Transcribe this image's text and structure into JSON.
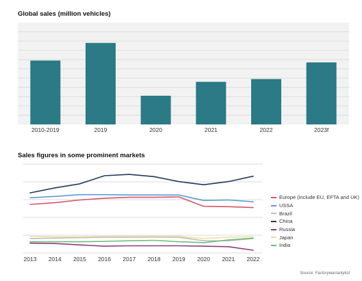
{
  "chart_data": [
    {
      "type": "bar",
      "title": "Global sales (million vehicles)",
      "categories": [
        "2010-2019",
        "2019",
        "2020",
        "2021",
        "2022",
        "2023f"
      ],
      "values": [
        6.9,
        8.8,
        3.1,
        4.6,
        4.9,
        6.7
      ],
      "ylim": [
        0,
        11
      ],
      "grid": true,
      "color": "#2b7a85"
    },
    {
      "type": "line",
      "title": "Sales figures in some prominent markets",
      "x": [
        2013,
        2014,
        2015,
        2016,
        2017,
        2018,
        2019,
        2020,
        2021,
        2022
      ],
      "ylim": [
        0,
        100
      ],
      "grid": true,
      "legend_position": "right",
      "series": [
        {
          "name": "Europe (include EU, EFTA and UK)",
          "color": "#d94f6c",
          "values": [
            54.6,
            56.6,
            59.6,
            61.6,
            62.6,
            62.6,
            63.1,
            52.5,
            52.1,
            51.1
          ]
        },
        {
          "name": "USSA",
          "color": "#5b9bd5",
          "values": [
            62.1,
            63.6,
            65.6,
            65.6,
            65.2,
            65.2,
            65.2,
            59.1,
            59.6,
            57.6
          ]
        },
        {
          "name": "Brazil",
          "color": "#bdbdbd",
          "values": [
            16.2,
            16.7,
            17.2,
            17.7,
            17.7,
            17.7,
            17.7,
            13.7,
            13.7,
            16.2
          ]
        },
        {
          "name": "China",
          "color": "#1f3a5a",
          "values": [
            67.6,
            73.2,
            77.8,
            86.9,
            88.4,
            85.9,
            80.3,
            76.8,
            80.3,
            86.4
          ]
        },
        {
          "name": "Russia",
          "color": "#8e3a7a",
          "values": [
            11.1,
            10.6,
            9.1,
            7.6,
            8.1,
            8.1,
            8.1,
            7.6,
            7.1,
            3.1
          ]
        },
        {
          "name": "Japan",
          "color": "#f2dca0",
          "values": [
            18.7,
            18.2,
            18.2,
            18.7,
            18.7,
            18.7,
            18.7,
            16.2,
            17.7,
            18.2
          ]
        },
        {
          "name": "India",
          "color": "#6abf7b",
          "values": [
            12.6,
            12.6,
            12.6,
            13.1,
            13.7,
            14.2,
            12.6,
            11.6,
            14.7,
            16.7
          ]
        }
      ]
    }
  ],
  "source": "Source: Factorywarrantylist"
}
